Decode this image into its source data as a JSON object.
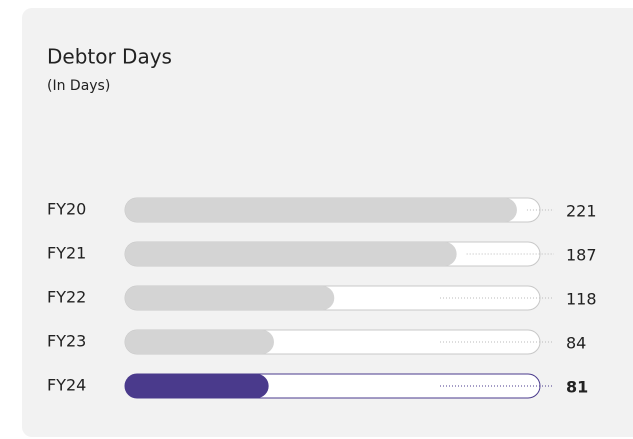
{
  "chart_data": {
    "type": "hbar",
    "title": "Debtor Days",
    "subtitle": "(In Days)",
    "categories": [
      "FY20",
      "FY21",
      "FY22",
      "FY23",
      "FY24"
    ],
    "values": [
      221,
      187,
      118,
      84,
      81
    ],
    "colors": [
      "#d4d4d4",
      "#d4d4d4",
      "#d4d4d4",
      "#d4d4d4",
      "#4a3a8c"
    ],
    "label_colors": [
      "#222222",
      "#222222",
      "#222222",
      "#222222",
      "#4a3a8c"
    ],
    "xlim": [
      0,
      234
    ]
  }
}
